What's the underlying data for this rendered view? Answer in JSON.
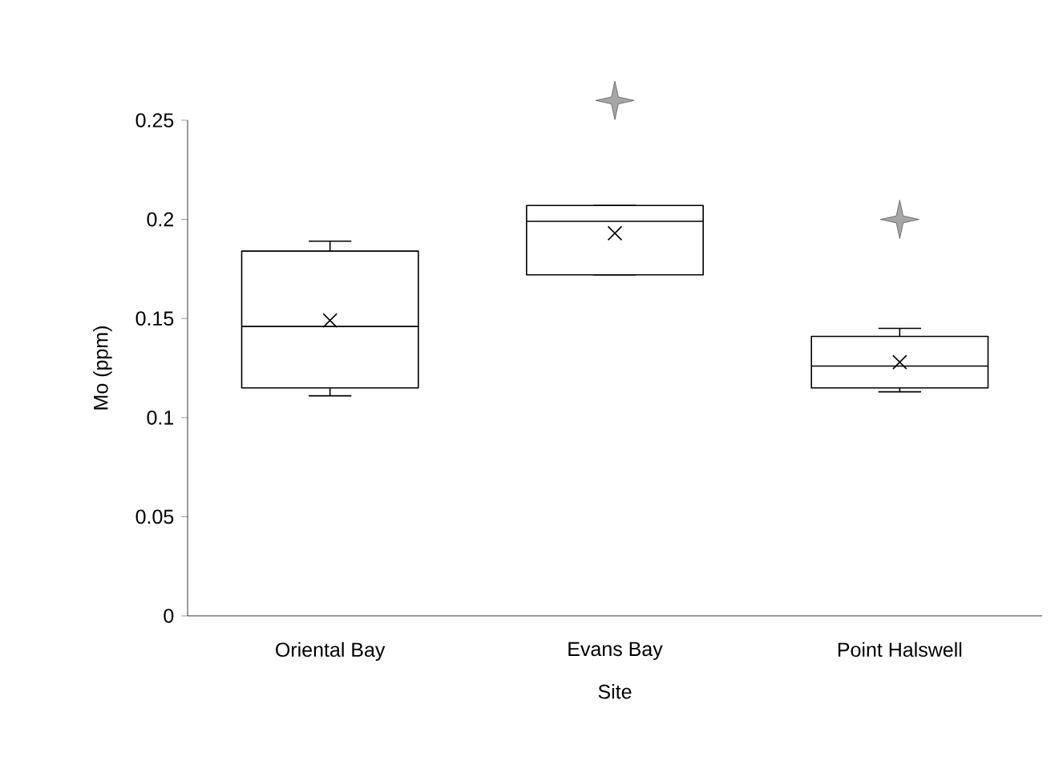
{
  "chart_data": {
    "type": "box",
    "xlabel": "Site",
    "ylabel": "Mo (ppm)",
    "categories": [
      "Oriental Bay",
      "Evans Bay",
      "Point Halswell"
    ],
    "boxes": [
      {
        "low": 0.111,
        "q1": 0.115,
        "median": 0.146,
        "q3": 0.184,
        "high": 0.189,
        "mean": 0.149
      },
      {
        "low": 0.172,
        "q1": 0.172,
        "median": 0.199,
        "q3": 0.207,
        "high": 0.207,
        "mean": 0.193,
        "outliers": [
          0.26
        ]
      },
      {
        "low": 0.113,
        "q1": 0.115,
        "median": 0.126,
        "q3": 0.141,
        "high": 0.145,
        "mean": 0.128,
        "outliers": [
          0.2
        ]
      }
    ],
    "ylim": [
      0,
      0.25
    ],
    "yticks": [
      0,
      0.05,
      0.1,
      0.15,
      0.2,
      0.25
    ],
    "grid": false
  }
}
